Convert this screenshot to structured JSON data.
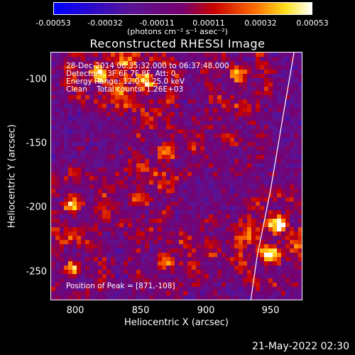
{
  "colorbar": {
    "ticks": [
      "-0.00053",
      "-0.00032",
      "-0.00011",
      "0.00011",
      "0.00032",
      "0.00053"
    ],
    "units": "(photons cm⁻² s⁻¹ asec⁻²)",
    "vmin": -0.00053,
    "vmax": 0.00053
  },
  "chart_data": {
    "type": "heatmap",
    "title": "Reconstructed RHESSI Image",
    "xlabel": "Heliocentric X (arcsec)",
    "ylabel": "Heliocentric Y (arcsec)",
    "xlim": [
      783,
      975
    ],
    "ylim": [
      -275,
      -83
    ],
    "xticks": [
      800,
      850,
      900,
      950
    ],
    "yticks": [
      -100,
      -150,
      -200,
      -250
    ],
    "annotations": [
      "28-Dec-2014 06:35:32.000 to 06:37:48.000",
      "Detectors: 3F 6F 7F 8F, Att: 0",
      "Energy Range: 12.0 to 25.0 keV",
      "Clean    Total counts: 1.26E+03"
    ],
    "peak_label": "Position of Peak = [871,-108]",
    "peak": [
      871,
      -108
    ],
    "limb_arc": [
      [
        968,
        -83
      ],
      [
        960,
        -130
      ],
      [
        950,
        -190
      ],
      [
        940,
        -240
      ],
      [
        935,
        -275
      ]
    ]
  },
  "datestamp": "21-May-2022 02:30"
}
